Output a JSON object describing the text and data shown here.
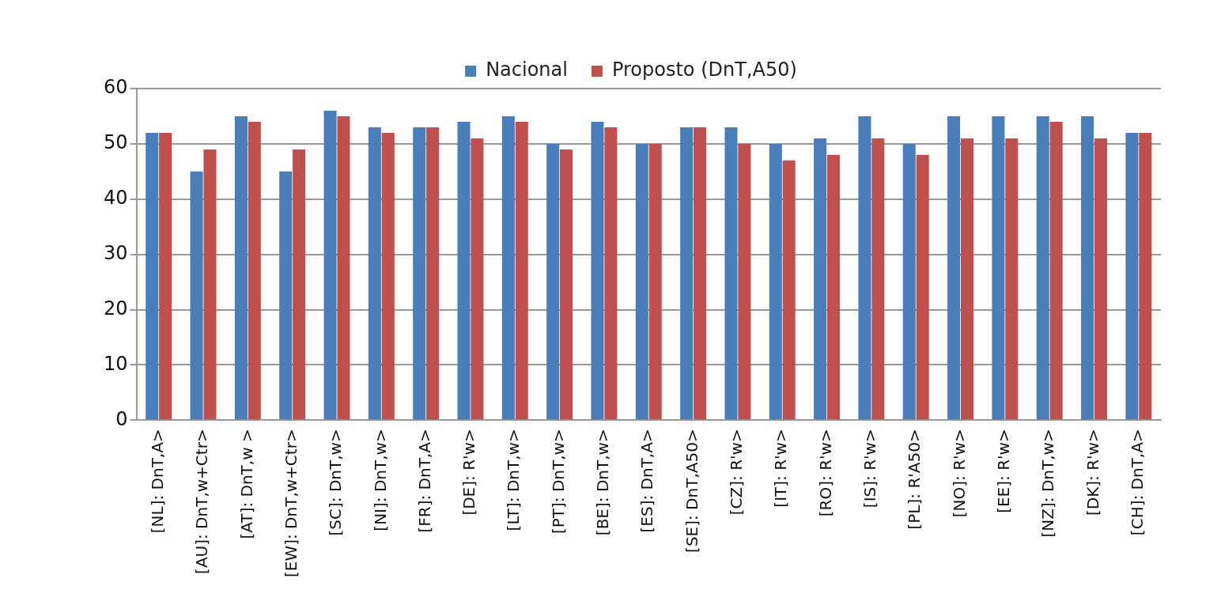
{
  "chart_data": {
    "type": "bar",
    "categories": [
      "[NL]: DnT,A>",
      "[AU]: DnT,w+Ctr>",
      "[AT]: DnT,w >",
      "[EW]: DnT,w+Ctr>",
      "[SC]: DnT,w>",
      "[NI]: DnT,w>",
      "[FR]: DnT,A>",
      "[DE]: R'w>",
      "[LT]: DnT,w>",
      "[PT]: DnT,w>",
      "[BE]: DnT,w>",
      "[ES]: DnT,A>",
      "[SE]: DnT,A50>",
      "[CZ]: R'w>",
      "[IT]: R'w>",
      "[RO]: R'w>",
      "[IS]: R'w>",
      "[PL]: R'A50>",
      "[NO]: R'w>",
      "[EE]: R'w>",
      "[NZ]: DnT,w>",
      "[DK]: R'w>",
      "[CH]: DnT,A>"
    ],
    "series": [
      {
        "name": "Nacional",
        "color": "#4a7ebb",
        "values": [
          52,
          45,
          55,
          45,
          56,
          53,
          53,
          54,
          55,
          50,
          54,
          50,
          53,
          53,
          50,
          51,
          55,
          50,
          55,
          55,
          55,
          55,
          52
        ]
      },
      {
        "name": "Proposto (DnT,A50)",
        "color": "#c0504d",
        "values": [
          52,
          49,
          54,
          49,
          55,
          52,
          53,
          51,
          54,
          49,
          53,
          50,
          53,
          50,
          47,
          48,
          51,
          48,
          51,
          51,
          54,
          51,
          52
        ]
      }
    ],
    "ylim": [
      0,
      60
    ],
    "yticks": [
      0,
      10,
      20,
      30,
      40,
      50,
      60
    ],
    "grid": "y",
    "legend": "top"
  }
}
